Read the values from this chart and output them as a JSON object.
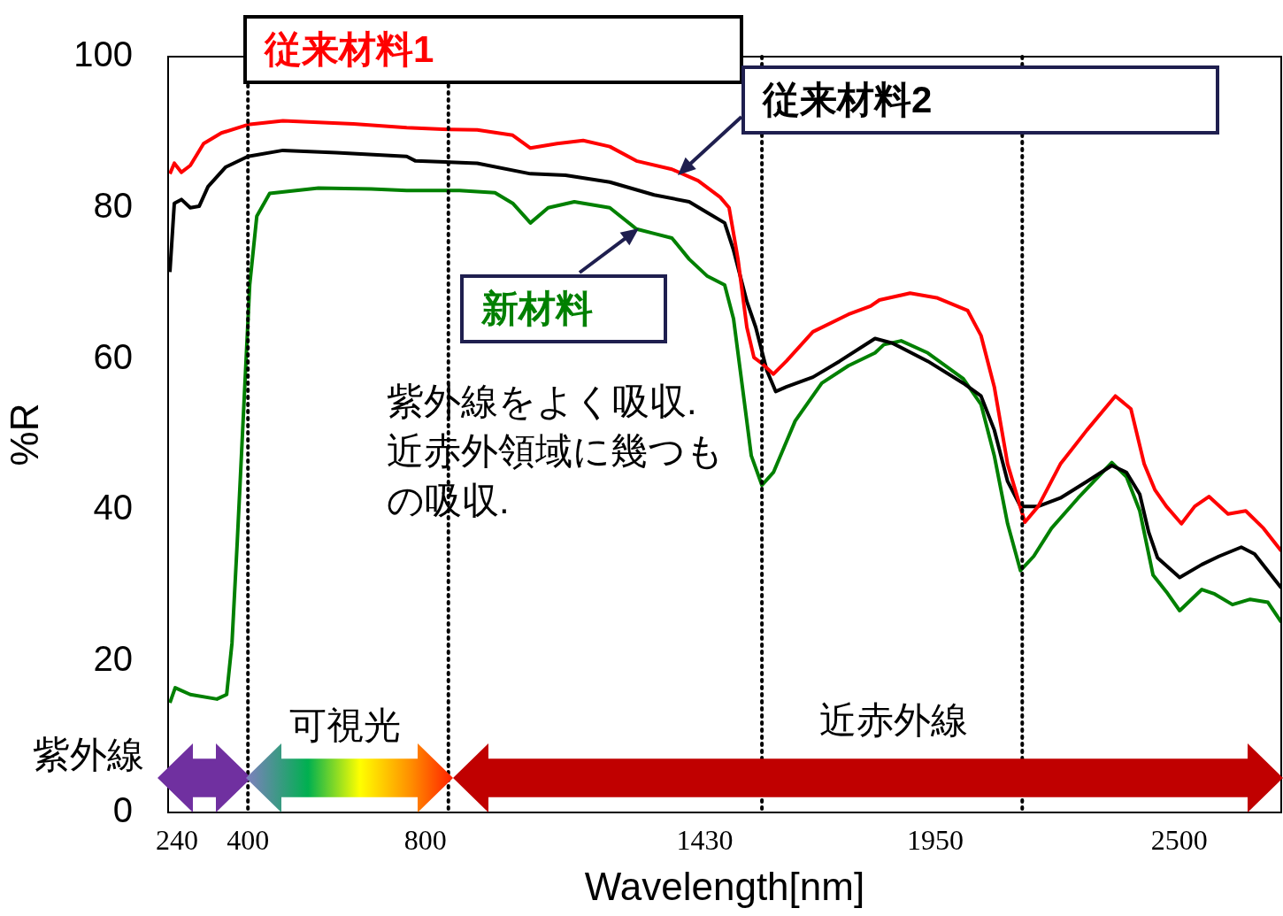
{
  "chart_data": {
    "type": "line",
    "xlabel": "Wavelength[nm]",
    "ylabel": "%R",
    "xlim": [
      220,
      2730
    ],
    "ylim": [
      0,
      100
    ],
    "xticks": [
      240,
      400,
      800,
      1430,
      1950,
      2500
    ],
    "yticks": [
      0,
      20,
      40,
      60,
      80,
      100
    ],
    "grid": false,
    "legend": "top",
    "marker": "none",
    "line_style": "solid",
    "series": [
      {
        "name": "従来材料1",
        "color": "#ff0000",
        "x": [
          224,
          234,
          250,
          270,
          300,
          340,
          400,
          479,
          638,
          758,
          838,
          917,
          997,
          1037,
          1097,
          1156,
          1216,
          1276,
          1356,
          1415,
          1465,
          1485,
          1505,
          1525,
          1541,
          1559,
          1585,
          1614,
          1674,
          1754,
          1804,
          1824,
          1893,
          1953,
          2023,
          2053,
          2083,
          2113,
          2152,
          2182,
          2232,
          2292,
          2356,
          2391,
          2421,
          2445,
          2471,
          2505,
          2535,
          2567,
          2610,
          2650,
          2690,
          2730
        ],
        "values": [
          84.5,
          85.9,
          84.7,
          85.6,
          88.5,
          89.9,
          91.0,
          91.5,
          91.1,
          90.6,
          90.4,
          90.3,
          89.6,
          87.9,
          88.5,
          88.9,
          88.1,
          86.2,
          85.1,
          83.6,
          81.4,
          80.0,
          73.2,
          64.2,
          60.2,
          59.4,
          58.0,
          59.7,
          63.6,
          65.9,
          67.0,
          67.8,
          68.7,
          68.1,
          66.4,
          63.1,
          56.3,
          46.1,
          38.4,
          40.5,
          46.1,
          50.6,
          55.1,
          53.4,
          46.1,
          42.7,
          40.5,
          38.2,
          40.5,
          41.8,
          39.5,
          39.9,
          37.6,
          34.6
        ]
      },
      {
        "name": "従来材料2",
        "color": "#000000",
        "x": [
          224,
          234,
          250,
          270,
          290,
          310,
          350,
          400,
          479,
          599,
          758,
          778,
          917,
          1037,
          1116,
          1216,
          1316,
          1395,
          1435,
          1475,
          1495,
          1525,
          1545,
          1570,
          1590,
          1614,
          1674,
          1734,
          1814,
          1853,
          1933,
          2013,
          2053,
          2083,
          2113,
          2142,
          2182,
          2232,
          2292,
          2348,
          2381,
          2411,
          2431,
          2451,
          2501,
          2551,
          2590,
          2640,
          2670,
          2730
        ],
        "values": [
          71.5,
          80.6,
          81.1,
          80.0,
          80.2,
          82.8,
          85.4,
          86.8,
          87.6,
          87.3,
          86.8,
          86.2,
          85.9,
          84.5,
          84.3,
          83.4,
          81.7,
          80.8,
          79.4,
          78.0,
          74.4,
          67.6,
          64.2,
          58.5,
          55.7,
          56.3,
          57.6,
          59.7,
          62.7,
          62.1,
          59.7,
          56.8,
          55.1,
          50.6,
          43.8,
          40.5,
          40.5,
          41.6,
          43.8,
          45.9,
          45.0,
          42.1,
          37.1,
          33.7,
          31.1,
          32.8,
          33.9,
          35.1,
          34.2,
          29.7
        ]
      },
      {
        "name": "新材料",
        "color": "#008000",
        "x": [
          224,
          236,
          270,
          330,
          352,
          364,
          376,
          390,
          404,
          420,
          449,
          559,
          678,
          758,
          877,
          957,
          997,
          1037,
          1077,
          1136,
          1216,
          1276,
          1316,
          1356,
          1395,
          1435,
          1475,
          1495,
          1515,
          1535,
          1559,
          1585,
          1634,
          1694,
          1754,
          1814,
          1834,
          1873,
          1933,
          2013,
          2053,
          2083,
          2113,
          2142,
          2172,
          2212,
          2272,
          2348,
          2381,
          2411,
          2441,
          2471,
          2501,
          2551,
          2580,
          2620,
          2660,
          2700,
          2730
        ],
        "values": [
          14.5,
          16.5,
          15.6,
          15.0,
          15.6,
          22.4,
          35.9,
          52.9,
          69.8,
          78.9,
          81.9,
          82.6,
          82.5,
          82.3,
          82.3,
          82.0,
          80.6,
          78.0,
          80.0,
          80.8,
          80.0,
          77.2,
          76.6,
          76.0,
          73.2,
          71.0,
          69.8,
          65.3,
          56.3,
          47.2,
          43.3,
          45.0,
          51.8,
          56.8,
          59.1,
          60.8,
          61.9,
          62.4,
          60.8,
          57.4,
          54.0,
          47.2,
          38.2,
          32.0,
          33.9,
          37.6,
          41.6,
          46.3,
          44.4,
          39.9,
          31.4,
          29.2,
          26.7,
          29.5,
          28.9,
          27.5,
          28.2,
          27.8,
          25.2
        ]
      }
    ],
    "ref_lines": [
      {
        "axis": "x",
        "value": 400,
        "line_style": "dotted"
      },
      {
        "axis": "x",
        "value": 852,
        "line_style": "dotted"
      },
      {
        "axis": "x",
        "value": 1559,
        "line_style": "dotted"
      },
      {
        "axis": "x",
        "value": 2146,
        "line_style": "dotted"
      }
    ],
    "annotations": [
      "紫外線をよく吸収.\n近赤外領域に幾つもの吸収.",
      "紫外線",
      "可視光",
      "近赤外線"
    ]
  }
}
